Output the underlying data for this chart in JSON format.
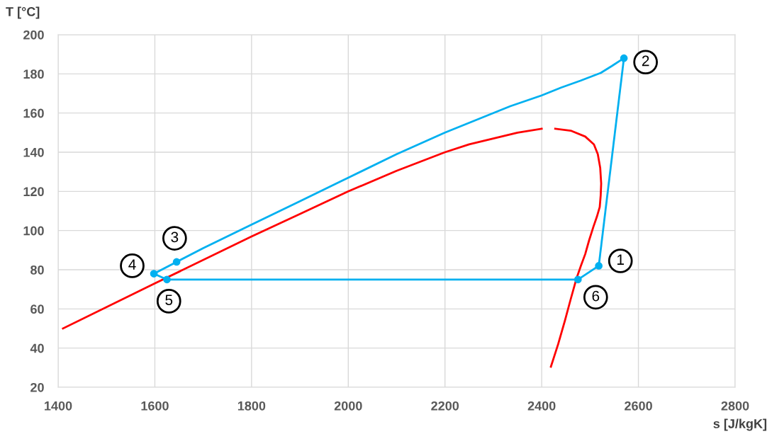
{
  "chart_data": {
    "type": "line",
    "xlabel": "s [J/kgK]",
    "ylabel": "T [°C]",
    "xlim": [
      1400,
      2800
    ],
    "xticks": [
      1400,
      1600,
      1800,
      2000,
      2200,
      2400,
      2600,
      2800
    ],
    "ylim": [
      20,
      200
    ],
    "yticks": [
      20,
      40,
      60,
      80,
      100,
      120,
      140,
      160,
      180,
      200
    ],
    "grid": true,
    "legend": false,
    "series": [
      {
        "color": "#ff0000",
        "marker": "none",
        "x": [
          1410,
          1600,
          1800,
          1900,
          2000,
          2100,
          2200,
          2250,
          2300,
          2350,
          2400
        ],
        "values": [
          50,
          73,
          97,
          108.5,
          120,
          130.5,
          140,
          144,
          147,
          150,
          152
        ]
      },
      {
        "color": "#ff0000",
        "marker": "none",
        "x": [
          2428,
          2460,
          2490,
          2508,
          2516,
          2521,
          2523,
          2522,
          2520,
          2514,
          2507,
          2498,
          2490,
          2481,
          2472,
          2460,
          2448,
          2434,
          2419
        ],
        "values": [
          152,
          151,
          148,
          144,
          139,
          132,
          124,
          118,
          112,
          107,
          102,
          95,
          88,
          82,
          75.6,
          65,
          54,
          42,
          30.5
        ]
      },
      {
        "color": "#00b0f0",
        "marker": "none",
        "x": [
          2518,
          2570
        ],
        "values": [
          82,
          188
        ]
      },
      {
        "color": "#00b0f0",
        "marker": "none",
        "x": [
          2570,
          2545,
          2522,
          2480,
          2440,
          2400,
          2335,
          2200,
          2100,
          2000,
          1900,
          1800,
          1700,
          1645
        ],
        "values": [
          188,
          184,
          180.5,
          176.5,
          173,
          169,
          163.5,
          150,
          139,
          127,
          115,
          103,
          91,
          84
        ]
      },
      {
        "color": "#00b0f0",
        "marker": "none",
        "x": [
          1645,
          1598
        ],
        "values": [
          84,
          78
        ]
      },
      {
        "color": "#00b0f0",
        "marker": "none",
        "x": [
          1598,
          1625
        ],
        "values": [
          78,
          75
        ]
      },
      {
        "color": "#00b0f0",
        "marker": "none",
        "x": [
          1625,
          2475
        ],
        "values": [
          75,
          75
        ]
      },
      {
        "color": "#00b0f0",
        "marker": "none",
        "x": [
          2475,
          2518
        ],
        "values": [
          75,
          82
        ]
      },
      {
        "type": "scatter",
        "color": "#00b0f0",
        "marker": "circle",
        "x": [
          2518,
          2570,
          1645,
          1598,
          1625,
          2475
        ],
        "values": [
          82,
          188,
          84,
          78,
          75,
          75
        ]
      }
    ],
    "annotations": [
      {
        "text": "1",
        "x": 2518,
        "y": 82
      },
      {
        "text": "2",
        "x": 2570,
        "y": 188
      },
      {
        "text": "3",
        "x": 1645,
        "y": 84
      },
      {
        "text": "4",
        "x": 1598,
        "y": 78
      },
      {
        "text": "5",
        "x": 1625,
        "y": 75
      },
      {
        "text": "6",
        "x": 2475,
        "y": 75
      }
    ]
  }
}
